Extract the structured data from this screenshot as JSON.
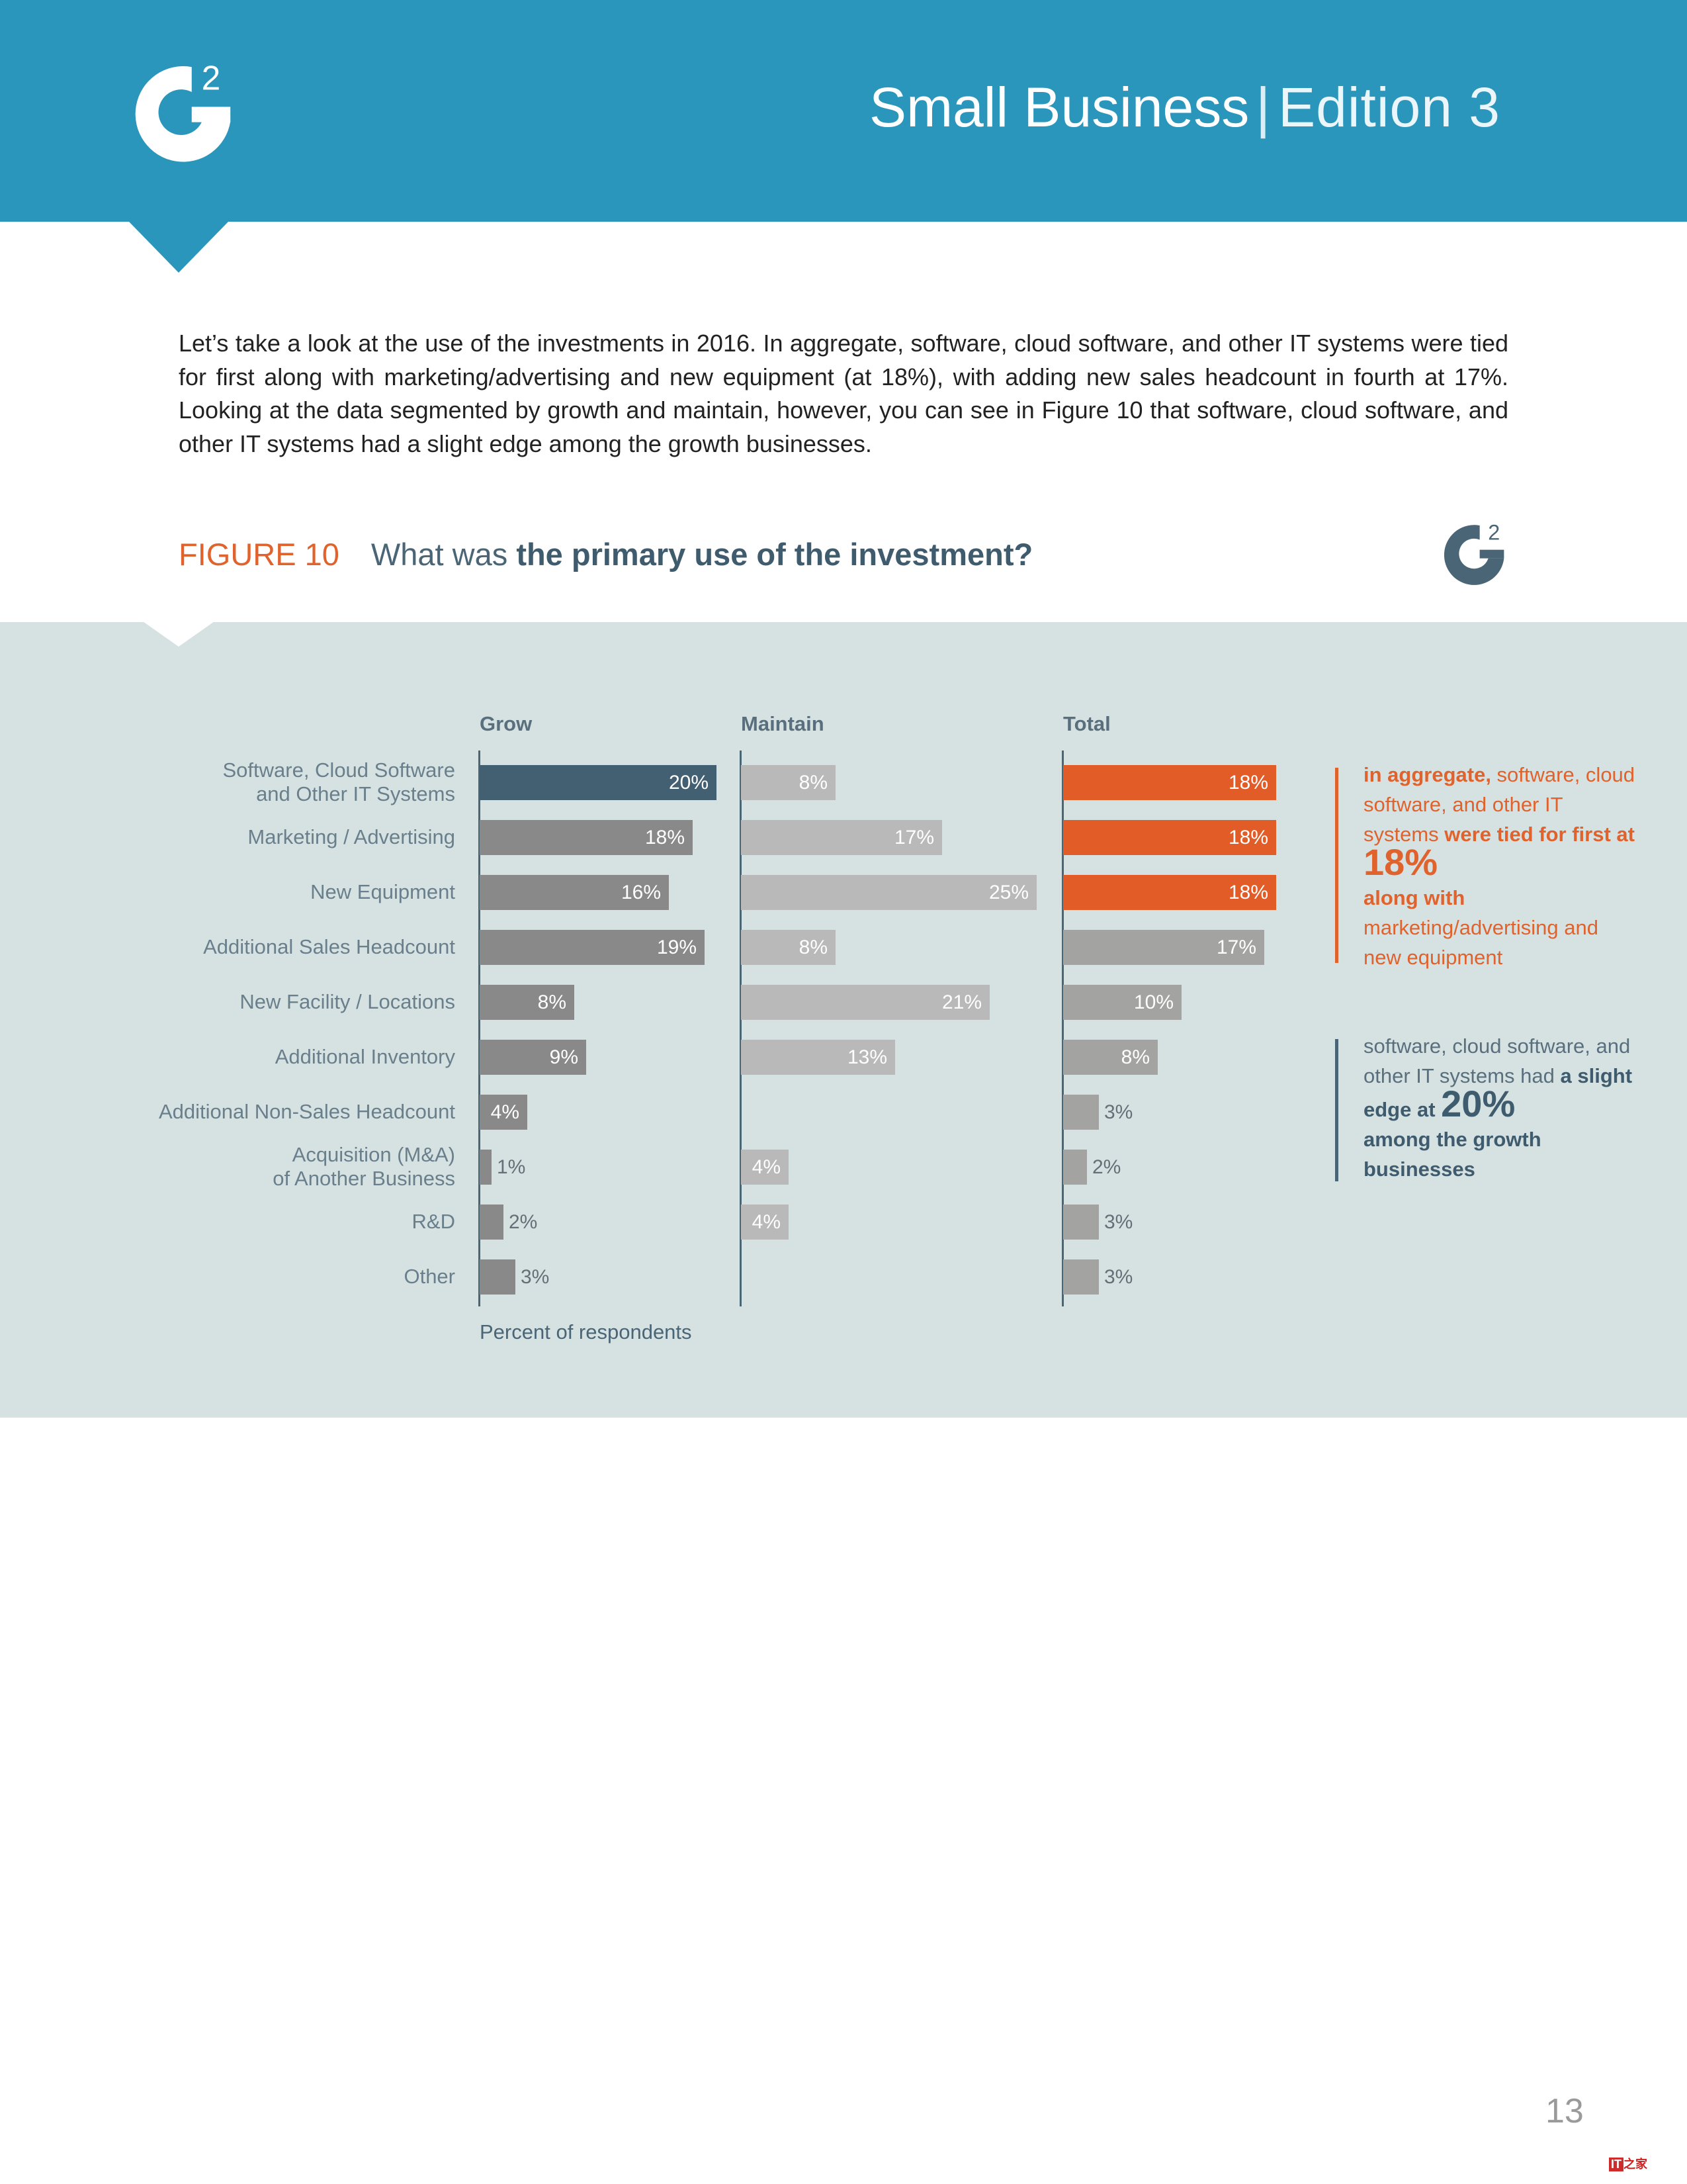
{
  "header": {
    "title_main": "Small Business",
    "title_sep": "|",
    "title_edition": "Edition 3",
    "logo": "g2-logo-icon",
    "banner_color": "#2a96bb"
  },
  "intro_text": "Let’s take a look at the use of the investments in 2016. In aggregate, software, cloud software, and other IT systems were tied for first along with marketing/advertising and new equipment (at 18%), with adding new sales headcount in fourth at 17%. Looking at the data segmented by growth and maintain, however, you can see in Figure 10 that software, cloud software, and other IT systems had a slight edge among the growth businesses.",
  "figure": {
    "number": "FIGURE 10",
    "question_prefix": "What was ",
    "question_bold": "the primary use of the investment?",
    "logo": "g2-logo-icon"
  },
  "chart_data": {
    "type": "bar",
    "orientation": "horizontal",
    "title": "What was the primary use of the investment?",
    "xlabel": "Percent of respondents",
    "ylabel": "",
    "categories": [
      "Software, Cloud Software and Other IT Systems",
      "Marketing / Advertising",
      "New Equipment",
      "Additional Sales Headcount",
      "New Facility / Locations",
      "Additional Inventory",
      "Additional Non-Sales Headcount",
      "Acquisition (M&A) of Another Business",
      "R&D",
      "Other"
    ],
    "series": [
      {
        "name": "Grow",
        "values": [
          20,
          18,
          16,
          19,
          8,
          9,
          4,
          1,
          2,
          3
        ]
      },
      {
        "name": "Maintain",
        "values": [
          8,
          17,
          25,
          8,
          21,
          13,
          null,
          4,
          4,
          null
        ]
      },
      {
        "name": "Total",
        "values": [
          18,
          18,
          18,
          17,
          10,
          8,
          3,
          2,
          3,
          3
        ]
      }
    ],
    "grid": false,
    "legend": "none (panel headers)",
    "colors": {
      "grow_highlight": "#435f72",
      "grow": "#898989",
      "maintain": "#b9b9b9",
      "total_highlight": "#e25c27",
      "total": "#a3a3a1"
    }
  },
  "chart": {
    "columns": [
      "Grow",
      "Maintain",
      "Total"
    ],
    "x_axis_label": "Percent of respondents",
    "row_labels": [
      [
        "Software, Cloud Software",
        "and Other IT Systems"
      ],
      [
        "Marketing / Advertising"
      ],
      [
        "New Equipment"
      ],
      [
        "Additional Sales Headcount"
      ],
      [
        "New Facility / Locations"
      ],
      [
        "Additional Inventory"
      ],
      [
        "Additional Non-Sales Headcount"
      ],
      [
        "Acquisition (M&A)",
        "of Another Business"
      ],
      [
        "R&D"
      ],
      [
        "Other"
      ]
    ],
    "grow": [
      {
        "v": 20,
        "label": "20%",
        "color": "#435f72"
      },
      {
        "v": 18,
        "label": "18%",
        "color": "#898989"
      },
      {
        "v": 16,
        "label": "16%",
        "color": "#898989"
      },
      {
        "v": 19,
        "label": "19%",
        "color": "#898989"
      },
      {
        "v": 8,
        "label": "8%",
        "color": "#898989"
      },
      {
        "v": 9,
        "label": "9%",
        "color": "#898989"
      },
      {
        "v": 4,
        "label": "4%",
        "color": "#898989"
      },
      {
        "v": 1,
        "label": "1%",
        "color": "#898989"
      },
      {
        "v": 2,
        "label": "2%",
        "color": "#898989"
      },
      {
        "v": 3,
        "label": "3%",
        "color": "#898989"
      }
    ],
    "maintain": [
      {
        "v": 8,
        "label": "8%",
        "color": "#b9b9b9"
      },
      {
        "v": 17,
        "label": "17%",
        "color": "#b9b9b9"
      },
      {
        "v": 25,
        "label": "25%",
        "color": "#b9b9b9"
      },
      {
        "v": 8,
        "label": "8%",
        "color": "#b9b9b9"
      },
      {
        "v": 21,
        "label": "21%",
        "color": "#b9b9b9"
      },
      {
        "v": 13,
        "label": "13%",
        "color": "#b9b9b9"
      },
      null,
      {
        "v": 4,
        "label": "4%",
        "color": "#b9b9b9"
      },
      {
        "v": 4,
        "label": "4%",
        "color": "#b9b9b9"
      },
      null
    ],
    "total": [
      {
        "v": 18,
        "label": "18%",
        "color": "#e25c27"
      },
      {
        "v": 18,
        "label": "18%",
        "color": "#e25c27"
      },
      {
        "v": 18,
        "label": "18%",
        "color": "#e25c27"
      },
      {
        "v": 17,
        "label": "17%",
        "color": "#a3a3a1"
      },
      {
        "v": 10,
        "label": "10%",
        "color": "#a3a3a1"
      },
      {
        "v": 8,
        "label": "8%",
        "color": "#a3a3a1"
      },
      {
        "v": 3,
        "label": "3%",
        "color": "#a3a3a1"
      },
      {
        "v": 2,
        "label": "2%",
        "color": "#a3a3a1"
      },
      {
        "v": 3,
        "label": "3%",
        "color": "#a3a3a1"
      },
      {
        "v": 3,
        "label": "3%",
        "color": "#a3a3a1"
      }
    ]
  },
  "callouts": {
    "aggregate": {
      "p1_bold": "in aggregate,",
      "p2": " software, cloud software, and other IT systems ",
      "p3_bold": "were tied for first at ",
      "big": "18%",
      "p4_bold": " along with",
      "p5": " marketing/advertising and new equipment",
      "color": "#e0622c"
    },
    "growth": {
      "p1": "software, cloud software, and other IT systems had ",
      "p2_bold": "a slight edge at ",
      "big": "20%",
      "p3_bold": " among the growth businesses",
      "color": "#3f5b6e"
    }
  },
  "footer": {
    "page_number": "13",
    "watermark_box": "IT",
    "watermark_text": "之家"
  }
}
